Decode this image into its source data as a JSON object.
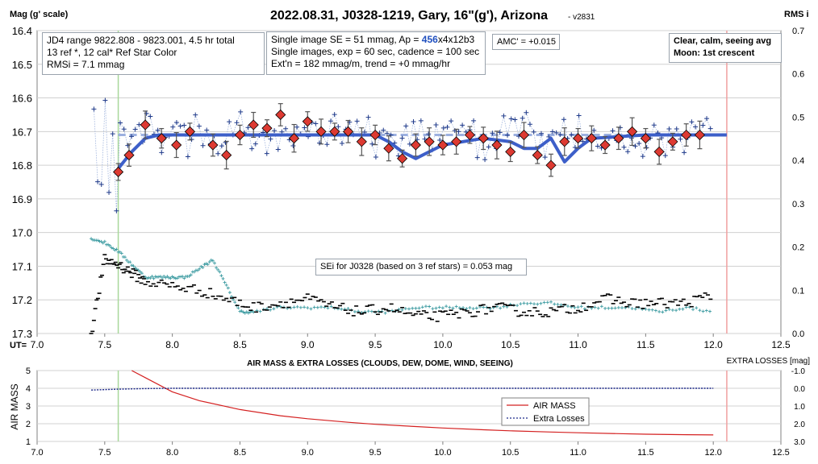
{
  "chart_data": [
    {
      "type": "scatter",
      "title": "2022.08.31, J0328-1219, Gary, 16\"(g'), Arizona",
      "version_tag": "- v2831",
      "ylabel_left": "Mag (g' scale)",
      "ylabel_right": "RMS i",
      "xlabel": "UT=",
      "xlim": [
        7.0,
        12.5
      ],
      "ylim": [
        16.4,
        17.3
      ],
      "ylim_right": [
        0.0,
        0.7
      ],
      "x_ticks": [
        "7.0",
        "7.5",
        "8.0",
        "8.5",
        "9.0",
        "9.5",
        "10.0",
        "10.5",
        "11.0",
        "11.5",
        "12.0",
        "12.5"
      ],
      "y_ticks": [
        "16.4",
        "16.5",
        "16.6",
        "16.7",
        "16.8",
        "16.9",
        "17.0",
        "17.1",
        "17.2",
        "17.3"
      ],
      "y_right_ticks": [
        "0.7",
        "0.6",
        "0.5",
        "0.4",
        "0.3",
        "0.2",
        "0.1",
        "0.0"
      ],
      "grid": true,
      "vertical_markers": [
        {
          "x": 7.6,
          "color": "#a8d89a"
        },
        {
          "x": 12.1,
          "color": "#f0a0a0"
        }
      ],
      "reference_level": 16.71,
      "annotations": {
        "box1": [
          "JD4 range 9822.808 - 9823.001, 4.5 hr total",
          "13 ref *, 12 cal*  Ref Star Color",
          "RMSi = 7.1 mmag"
        ],
        "box2_line1_prefix": "Single image SE = 51 mmag, Ap = ",
        "box2_ap_value": "456",
        "box2_ap_suffix": "x4x12b3",
        "box2_line2": "Single images, exp = 60 sec, cadence = 100 sec",
        "box2_line3": "Ext'n = 182 mmag/m, trend = +0 mmag/hr",
        "amc": "AMC' = +0.015",
        "conditions": [
          "Clear, calm, seeing avg",
          "Moon: 1st crescent"
        ],
        "sei": "SEi for J0328 (based on 3 ref stars) = 0.053 mag"
      },
      "series": [
        {
          "type": "line",
          "color": "#3d5fc9",
          "x": [
            7.6,
            7.7,
            7.8,
            7.9,
            8.0,
            8.3,
            8.5,
            9.0,
            9.5,
            9.6,
            9.7,
            9.8,
            9.9,
            10.0,
            10.3,
            10.5,
            10.6,
            10.7,
            10.8,
            10.9,
            11.0,
            11.1,
            11.5,
            12.0,
            12.1
          ],
          "y": [
            16.81,
            16.76,
            16.72,
            16.71,
            16.71,
            16.71,
            16.71,
            16.71,
            16.71,
            16.73,
            16.76,
            16.78,
            16.76,
            16.74,
            16.72,
            16.73,
            16.75,
            16.75,
            16.72,
            16.79,
            16.75,
            16.72,
            16.71,
            16.71,
            16.71
          ]
        },
        {
          "type": "mean-points",
          "color": "#dd3a32",
          "x": [
            7.6,
            7.68,
            7.8,
            7.92,
            8.03,
            8.13,
            8.3,
            8.4,
            8.5,
            8.6,
            8.7,
            8.8,
            8.9,
            9.0,
            9.1,
            9.2,
            9.3,
            9.4,
            9.5,
            9.6,
            9.7,
            9.8,
            9.9,
            10.0,
            10.1,
            10.2,
            10.3,
            10.4,
            10.5,
            10.6,
            10.7,
            10.8,
            10.9,
            11.0,
            11.1,
            11.2,
            11.3,
            11.4,
            11.5,
            11.6,
            11.7,
            11.8,
            11.9
          ],
          "y": [
            16.82,
            16.77,
            16.68,
            16.72,
            16.74,
            16.7,
            16.74,
            16.77,
            16.71,
            16.68,
            16.69,
            16.65,
            16.72,
            16.67,
            16.7,
            16.7,
            16.7,
            16.73,
            16.71,
            16.75,
            16.78,
            16.74,
            16.73,
            16.74,
            16.73,
            16.71,
            16.72,
            16.74,
            16.76,
            16.71,
            16.77,
            16.8,
            16.73,
            16.72,
            16.72,
            16.74,
            16.72,
            16.7,
            16.72,
            16.76,
            16.73,
            16.71,
            16.71
          ]
        },
        {
          "type": "single-image-points",
          "color": "#1f3a8a",
          "note": "scattered around 16.71 with sigma about 0.05 mag, UT 7.4 to 12.0"
        },
        {
          "type": "rms-points",
          "color": "#3a9aa0",
          "axis": "right",
          "x": [
            7.4,
            7.5,
            7.6,
            7.7,
            7.8,
            7.9,
            8.0,
            8.1,
            8.2,
            8.3,
            8.4,
            8.5,
            8.6,
            8.8,
            9.0,
            9.2,
            9.4,
            9.6,
            9.8,
            10.0,
            10.2,
            10.4,
            10.6,
            10.8,
            11.0,
            11.2,
            11.4,
            11.6,
            11.8,
            12.0
          ],
          "y": [
            0.22,
            0.21,
            0.19,
            0.16,
            0.13,
            0.13,
            0.13,
            0.13,
            0.15,
            0.17,
            0.11,
            0.05,
            0.05,
            0.06,
            0.06,
            0.06,
            0.05,
            0.05,
            0.06,
            0.06,
            0.06,
            0.06,
            0.07,
            0.07,
            0.06,
            0.06,
            0.06,
            0.05,
            0.06,
            0.05
          ]
        },
        {
          "type": "residual-points",
          "color": "#000000",
          "axis": "right",
          "x": [
            7.4,
            7.5,
            7.6,
            7.7,
            7.8,
            8.0,
            8.2,
            8.4,
            8.6,
            8.8,
            9.0,
            9.2,
            9.4,
            9.6,
            9.8,
            10.0,
            10.2,
            10.4,
            10.6,
            10.8,
            11.0,
            11.2,
            11.4,
            11.6,
            11.8,
            12.0
          ],
          "y": [
            0.0,
            0.17,
            0.16,
            0.14,
            0.12,
            0.11,
            0.1,
            0.08,
            0.06,
            0.07,
            0.08,
            0.06,
            0.05,
            0.06,
            0.04,
            0.04,
            0.05,
            0.06,
            0.05,
            0.05,
            0.06,
            0.08,
            0.07,
            0.07,
            0.07,
            0.09
          ]
        }
      ]
    },
    {
      "type": "line",
      "title": "AIR MASS & EXTRA LOSSES (CLOUDS, DEW, DOME, WIND, SEEING)",
      "ylabel_left": "AIR MASS",
      "ylabel_right": "EXTRA LOSSES [mag]",
      "xlim": [
        7.0,
        12.5
      ],
      "ylim": [
        1,
        5
      ],
      "ylim_right": [
        -1.0,
        3.0
      ],
      "x_ticks": [
        "7.0",
        "7.5",
        "8.0",
        "8.5",
        "9.0",
        "9.5",
        "10.0",
        "10.5",
        "11.0",
        "11.5",
        "12.0",
        "12.5"
      ],
      "y_ticks": [
        "5",
        "4",
        "3",
        "2",
        "1"
      ],
      "y_right_ticks": [
        "-1.0",
        "0.0",
        "1.0",
        "2.0",
        "3.0"
      ],
      "legend": [
        "AIR MASS",
        "Extra Losses"
      ],
      "legend_position": "center-right",
      "vertical_markers": [
        {
          "x": 7.6,
          "color": "#a8d89a"
        },
        {
          "x": 12.1,
          "color": "#f0a0a0"
        }
      ],
      "series": [
        {
          "name": "AIR MASS",
          "color": "#d42020",
          "x": [
            7.7,
            7.8,
            8.0,
            8.2,
            8.5,
            8.8,
            9.0,
            9.3,
            9.5,
            9.8,
            10.0,
            10.3,
            10.5,
            10.8,
            11.0,
            11.3,
            11.5,
            11.8,
            12.0
          ],
          "y": [
            5.0,
            4.6,
            3.8,
            3.3,
            2.8,
            2.45,
            2.28,
            2.08,
            1.97,
            1.84,
            1.76,
            1.66,
            1.6,
            1.53,
            1.49,
            1.44,
            1.41,
            1.38,
            1.37
          ]
        },
        {
          "name": "Extra Losses",
          "color": "#1f2a8a",
          "x": [
            7.4,
            7.6,
            7.8,
            8.0,
            8.5,
            9.0,
            9.5,
            10.0,
            10.5,
            11.0,
            11.5,
            12.0
          ],
          "y": [
            0.1,
            0.05,
            0.02,
            0.0,
            0.0,
            0.0,
            0.0,
            0.0,
            0.0,
            0.0,
            0.0,
            0.0
          ]
        }
      ]
    }
  ]
}
